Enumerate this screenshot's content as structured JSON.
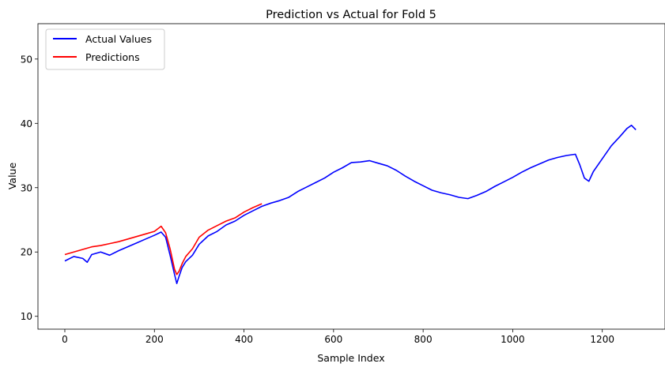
{
  "chart_data": {
    "type": "line",
    "title": "Prediction vs Actual for Fold 5",
    "xlabel": "Sample Index",
    "ylabel": "Value",
    "xlim": [
      -60,
      1340
    ],
    "ylim": [
      8.0,
      55.5
    ],
    "xticks": [
      0,
      200,
      400,
      600,
      800,
      1000,
      1200
    ],
    "yticks": [
      10,
      20,
      30,
      40,
      50
    ],
    "grid": false,
    "legend_position": "top-left",
    "series": [
      {
        "name": "Actual Values",
        "color": "#0000ff",
        "x": [
          0,
          20,
          40,
          50,
          60,
          80,
          100,
          120,
          140,
          160,
          180,
          200,
          215,
          225,
          235,
          245,
          250,
          255,
          262,
          270,
          285,
          300,
          320,
          340,
          360,
          380,
          400,
          420,
          440,
          460,
          480,
          500,
          520,
          540,
          560,
          580,
          600,
          620,
          640,
          660,
          680,
          700,
          720,
          740,
          760,
          780,
          800,
          820,
          840,
          860,
          880,
          900,
          920,
          940,
          960,
          980,
          1000,
          1020,
          1040,
          1060,
          1080,
          1100,
          1120,
          1140,
          1150,
          1160,
          1170,
          1180,
          1200,
          1220,
          1240,
          1255,
          1265,
          1275
        ],
        "y": [
          18.6,
          19.3,
          19.0,
          18.4,
          19.6,
          20.0,
          19.5,
          20.2,
          20.8,
          21.4,
          22.0,
          22.6,
          23.1,
          22.3,
          19.5,
          16.5,
          15.1,
          16.2,
          17.6,
          18.5,
          19.5,
          21.2,
          22.5,
          23.2,
          24.2,
          24.8,
          25.7,
          26.4,
          27.1,
          27.6,
          28.0,
          28.5,
          29.4,
          30.1,
          30.8,
          31.5,
          32.4,
          33.1,
          33.9,
          34.0,
          34.2,
          33.8,
          33.4,
          32.7,
          31.8,
          31.0,
          30.3,
          29.6,
          29.2,
          28.9,
          28.5,
          28.3,
          28.8,
          29.4,
          30.2,
          30.9,
          31.6,
          32.4,
          33.1,
          33.7,
          34.3,
          34.7,
          35.0,
          35.2,
          33.5,
          31.5,
          31.0,
          32.5,
          34.5,
          36.5,
          38.0,
          39.2,
          39.7,
          39.0
        ]
      },
      {
        "name": "Predictions",
        "color": "#ff0000",
        "x": [
          0,
          20,
          40,
          60,
          80,
          100,
          120,
          140,
          160,
          180,
          200,
          215,
          225,
          235,
          245,
          250,
          255,
          262,
          270,
          285,
          300,
          320,
          340,
          360,
          380,
          400,
          420,
          440
        ],
        "y": [
          19.6,
          20.0,
          20.4,
          20.8,
          21.0,
          21.3,
          21.6,
          22.0,
          22.4,
          22.8,
          23.2,
          24.0,
          23.0,
          20.5,
          17.3,
          16.5,
          17.0,
          18.2,
          19.3,
          20.5,
          22.3,
          23.4,
          24.1,
          24.8,
          25.3,
          26.2,
          26.9,
          27.5
        ]
      }
    ]
  }
}
